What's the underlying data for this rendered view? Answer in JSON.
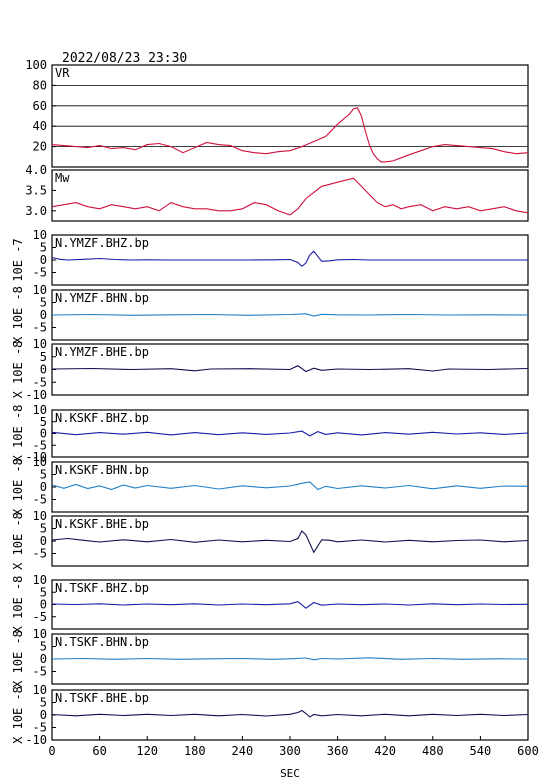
{
  "header": {
    "timestamp": "2022/08/23 23:30"
  },
  "chart_data": {
    "type": "line",
    "xlabel": "SEC",
    "xlim": [
      0,
      600
    ],
    "xticks": [
      "0",
      "60",
      "120",
      "180",
      "240",
      "300",
      "360",
      "420",
      "480",
      "540",
      "600"
    ],
    "panels": [
      {
        "label": "VR",
        "ylim": [
          0,
          100
        ],
        "yticks": [
          "100",
          "80",
          "60",
          "40",
          "20"
        ],
        "grid": true,
        "color": "#d0103c",
        "series": {
          "x": [
            0,
            15,
            30,
            45,
            60,
            75,
            90,
            105,
            120,
            135,
            150,
            165,
            180,
            195,
            210,
            225,
            240,
            255,
            270,
            285,
            300,
            315,
            330,
            345,
            360,
            375,
            380,
            385,
            390,
            395,
            400,
            405,
            410,
            415,
            420,
            430,
            440,
            450,
            465,
            480,
            495,
            510,
            525,
            540,
            555,
            570,
            585,
            600
          ],
          "y": [
            22,
            21,
            20,
            19,
            21,
            18,
            19,
            17,
            22,
            23,
            20,
            14,
            19,
            24,
            22,
            21,
            16,
            14,
            13,
            15,
            16,
            20,
            25,
            30,
            42,
            52,
            57,
            58,
            50,
            35,
            22,
            13,
            8,
            5,
            5,
            6,
            9,
            12,
            16,
            20,
            22,
            21,
            20,
            19,
            18,
            15,
            13,
            14
          ]
        }
      },
      {
        "label": "Mw",
        "ylim": [
          2.75,
          4.0
        ],
        "yticks": [
          "4.0",
          "3.5",
          "3.0"
        ],
        "grid": false,
        "color": "#d0103c",
        "series": {
          "x": [
            0,
            15,
            30,
            45,
            60,
            75,
            90,
            105,
            120,
            135,
            150,
            165,
            180,
            195,
            210,
            225,
            240,
            255,
            270,
            285,
            300,
            310,
            320,
            330,
            340,
            350,
            360,
            370,
            380,
            390,
            400,
            410,
            420,
            430,
            440,
            450,
            465,
            480,
            495,
            510,
            525,
            540,
            555,
            570,
            585,
            600
          ],
          "y": [
            3.1,
            3.15,
            3.2,
            3.1,
            3.05,
            3.15,
            3.1,
            3.05,
            3.1,
            3.0,
            3.2,
            3.1,
            3.05,
            3.05,
            3.0,
            3.0,
            3.05,
            3.2,
            3.15,
            3.0,
            2.9,
            3.05,
            3.3,
            3.45,
            3.6,
            3.65,
            3.7,
            3.75,
            3.8,
            3.6,
            3.4,
            3.2,
            3.1,
            3.15,
            3.05,
            3.1,
            3.15,
            3.0,
            3.1,
            3.05,
            3.1,
            3.0,
            3.05,
            3.1,
            3.0,
            2.95
          ]
        }
      },
      {
        "label": "N.YMZF.BHZ.bp",
        "ylim": [
          -10,
          10
        ],
        "yticks": [
          "10",
          "5",
          "0",
          "-5"
        ],
        "yunit": "10E -7",
        "color": "#1a1aa8",
        "series": {
          "x": [
            0,
            10,
            20,
            40,
            60,
            80,
            100,
            120,
            150,
            200,
            250,
            280,
            300,
            310,
            315,
            320,
            325,
            330,
            335,
            340,
            350,
            360,
            380,
            400,
            420,
            450,
            500,
            550,
            600
          ],
          "y": [
            1.0,
            0.3,
            0.0,
            0.3,
            0.6,
            0.2,
            0.0,
            0.1,
            0.0,
            0.0,
            0.0,
            0.1,
            0.2,
            -1.0,
            -2.5,
            -1.2,
            2.0,
            3.5,
            1.5,
            -0.5,
            -0.3,
            0.1,
            0.2,
            0.0,
            0.0,
            0.0,
            0.0,
            0.0,
            0.0
          ]
        }
      },
      {
        "label": "N.YMZF.BHN.bp",
        "ylim": [
          -10,
          10
        ],
        "yticks": [
          "10",
          "5",
          "0",
          "-5"
        ],
        "yunit": "X 10E -8",
        "color": "#1f7fc8",
        "series": {
          "x": [
            0,
            50,
            100,
            150,
            200,
            250,
            300,
            320,
            330,
            340,
            360,
            400,
            450,
            500,
            550,
            600
          ],
          "y": [
            0.0,
            0.2,
            -0.1,
            0.1,
            0.2,
            -0.1,
            0.2,
            0.5,
            -0.4,
            0.3,
            0.1,
            0.0,
            0.2,
            0.0,
            0.1,
            0.0
          ]
        }
      },
      {
        "label": "N.YMZF.BHE.bp",
        "ylim": [
          -10,
          10
        ],
        "yticks": [
          "10",
          "5",
          "0",
          "-5",
          "-10"
        ],
        "yunit": "X 10E -8",
        "color": "#101050",
        "series": {
          "x": [
            0,
            50,
            100,
            150,
            180,
            200,
            250,
            300,
            310,
            320,
            330,
            340,
            360,
            400,
            450,
            480,
            500,
            550,
            600
          ],
          "y": [
            0.2,
            0.4,
            0.0,
            0.3,
            -0.5,
            0.2,
            0.3,
            0.0,
            1.5,
            -0.8,
            0.5,
            -0.3,
            0.2,
            0.0,
            0.3,
            -0.6,
            0.2,
            0.0,
            0.4
          ]
        }
      },
      {
        "label": "N.KSKF.BHZ.bp",
        "ylim": [
          -10,
          10
        ],
        "yticks": [
          "10",
          "5",
          "0",
          "-5",
          "-10"
        ],
        "yunit": "X 10E -8",
        "color": "#1a1aa8",
        "series": {
          "x": [
            0,
            30,
            60,
            90,
            120,
            150,
            180,
            210,
            240,
            270,
            300,
            315,
            325,
            335,
            345,
            360,
            390,
            420,
            450,
            480,
            510,
            540,
            570,
            600
          ],
          "y": [
            0.5,
            -0.5,
            0.4,
            -0.3,
            0.5,
            -0.6,
            0.4,
            -0.5,
            0.3,
            -0.4,
            0.2,
            1.0,
            -1.0,
            0.8,
            -0.4,
            0.3,
            -0.6,
            0.4,
            -0.3,
            0.5,
            -0.2,
            0.3,
            -0.4,
            0.2
          ]
        }
      },
      {
        "label": "N.KSKF.BHN.bp",
        "ylim": [
          -10,
          10
        ],
        "yticks": [
          "10",
          "5",
          "0",
          "-5"
        ],
        "yunit": "X 10E -8",
        "color": "#1f7fc8",
        "series": {
          "x": [
            0,
            15,
            30,
            45,
            60,
            75,
            90,
            105,
            120,
            150,
            180,
            210,
            240,
            270,
            300,
            315,
            325,
            335,
            345,
            360,
            390,
            420,
            450,
            480,
            510,
            540,
            570,
            600
          ],
          "y": [
            0.8,
            -0.5,
            1.0,
            -0.6,
            0.5,
            -1.0,
            0.8,
            -0.4,
            0.6,
            -0.5,
            0.6,
            -0.8,
            0.5,
            -0.3,
            0.4,
            1.5,
            2.0,
            -1.0,
            0.3,
            -0.6,
            0.5,
            -0.4,
            0.6,
            -0.7,
            0.5,
            -0.5,
            0.4,
            0.3
          ]
        }
      },
      {
        "label": "N.KSKF.BHE.bp",
        "ylim": [
          -10,
          10
        ],
        "yticks": [
          "10",
          "5",
          "0",
          "-5"
        ],
        "yunit": "X 10E -8",
        "color": "#101050",
        "series": {
          "x": [
            0,
            20,
            40,
            60,
            90,
            120,
            150,
            180,
            210,
            240,
            270,
            300,
            310,
            315,
            320,
            325,
            330,
            335,
            340,
            350,
            360,
            390,
            420,
            450,
            480,
            510,
            540,
            570,
            600
          ],
          "y": [
            0.4,
            1.0,
            0.3,
            -0.4,
            0.5,
            -0.3,
            0.6,
            -0.5,
            0.4,
            -0.3,
            0.3,
            -0.2,
            1.0,
            4.0,
            2.5,
            -1.0,
            -4.5,
            -2.0,
            0.5,
            0.3,
            -0.3,
            0.4,
            -0.4,
            0.3,
            -0.3,
            0.2,
            0.4,
            -0.3,
            0.2
          ]
        }
      },
      {
        "label": "N.TSKF.BHZ.bp",
        "ylim": [
          -10,
          10
        ],
        "yticks": [
          "10",
          "5",
          "0",
          "-5"
        ],
        "yunit": "X 10E -8",
        "color": "#1a1aa8",
        "series": {
          "x": [
            0,
            30,
            60,
            90,
            120,
            150,
            180,
            210,
            240,
            270,
            300,
            310,
            320,
            330,
            340,
            360,
            390,
            420,
            450,
            480,
            510,
            540,
            570,
            600
          ],
          "y": [
            0.2,
            0.0,
            0.3,
            -0.2,
            0.2,
            -0.1,
            0.3,
            -0.2,
            0.2,
            -0.1,
            0.3,
            1.2,
            -1.5,
            0.8,
            -0.3,
            0.2,
            -0.1,
            0.2,
            -0.2,
            0.3,
            -0.1,
            0.2,
            0.0,
            0.1
          ]
        }
      },
      {
        "label": "N.TSKF.BHN.bp",
        "ylim": [
          -10,
          10
        ],
        "yticks": [
          "10",
          "5",
          "0",
          "-5"
        ],
        "yunit": "X 10E -8",
        "color": "#1f7fc8",
        "series": {
          "x": [
            0,
            40,
            80,
            120,
            160,
            200,
            240,
            280,
            300,
            320,
            330,
            340,
            360,
            400,
            440,
            480,
            520,
            560,
            600
          ],
          "y": [
            0.0,
            0.2,
            -0.1,
            0.2,
            -0.1,
            0.1,
            0.2,
            -0.1,
            0.1,
            0.4,
            -0.3,
            0.2,
            0.0,
            0.5,
            -0.1,
            0.2,
            -0.1,
            0.1,
            0.0
          ]
        }
      },
      {
        "label": "N.TSKF.BHE.bp",
        "ylim": [
          -10,
          10
        ],
        "yticks": [
          "10",
          "5",
          "0",
          "-5",
          "-10"
        ],
        "yunit": "X 10E -8",
        "color": "#101050",
        "series": {
          "x": [
            0,
            30,
            60,
            90,
            120,
            150,
            180,
            210,
            240,
            270,
            300,
            310,
            315,
            320,
            325,
            330,
            340,
            360,
            390,
            420,
            450,
            480,
            510,
            540,
            570,
            600
          ],
          "y": [
            0.2,
            -0.3,
            0.3,
            -0.2,
            0.3,
            -0.2,
            0.3,
            -0.3,
            0.2,
            -0.4,
            0.3,
            1.0,
            1.8,
            0.6,
            -0.8,
            0.2,
            -0.3,
            0.2,
            -0.3,
            0.3,
            -0.3,
            0.3,
            -0.2,
            0.3,
            -0.2,
            0.2
          ]
        }
      }
    ]
  }
}
